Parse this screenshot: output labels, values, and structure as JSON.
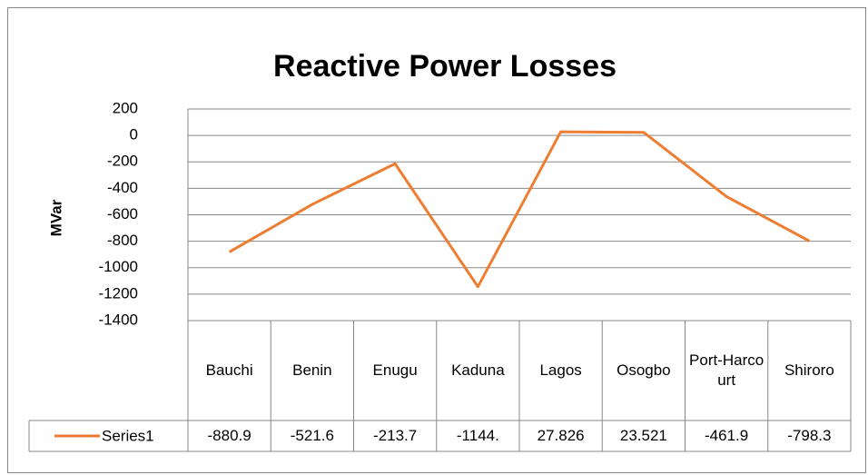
{
  "chart_data": {
    "type": "line",
    "title": "Reactive Power Losses",
    "y_label": "MVar",
    "categories": [
      "Bauchi",
      "Benin",
      "Enugu",
      "Kaduna",
      "Lagos",
      "Osogbo",
      "Port-Harcourt",
      "Shiroro"
    ],
    "series": [
      {
        "name": "Series1",
        "color": "#ed7d31",
        "values": [
          -880.9,
          -521.6,
          -213.7,
          -1144,
          27.826,
          23.521,
          -461.9,
          -798.3
        ],
        "value_labels": [
          "-880.9",
          "-521.6",
          "-213.7",
          "-1144.",
          "27.826",
          "23.521",
          "-461.9",
          "-798.3"
        ]
      }
    ],
    "ylim": [
      -1400,
      200
    ],
    "yticks": [
      200,
      0,
      -200,
      -400,
      -600,
      -800,
      -1000,
      -1200,
      -1400
    ],
    "grid": true
  }
}
